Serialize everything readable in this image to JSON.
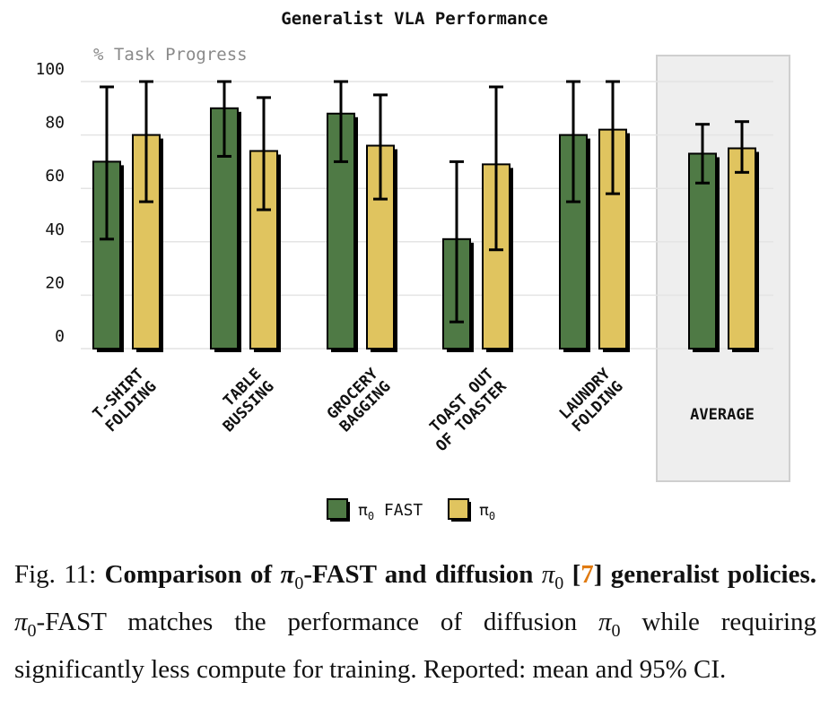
{
  "chart_data": {
    "type": "bar",
    "title": "Generalist VLA Performance",
    "ylabel": "% Task Progress",
    "xlabel": "",
    "ylim": [
      0,
      100
    ],
    "yticks": [
      "0",
      "20",
      "40",
      "60",
      "80",
      "100"
    ],
    "categories": [
      {
        "lines": [
          "T-SHIRT",
          "FOLDING"
        ]
      },
      {
        "lines": [
          "TABLE",
          "BUSSING"
        ]
      },
      {
        "lines": [
          "GROCERY",
          "BAGGING"
        ]
      },
      {
        "lines": [
          "TOAST OUT",
          "OF TOASTER"
        ]
      },
      {
        "lines": [
          "LAUNDRY",
          "FOLDING"
        ]
      },
      {
        "lines": [
          "AVERAGE"
        ]
      }
    ],
    "series": [
      {
        "name": "π₀ FAST",
        "legend_main": "π",
        "legend_sub": "0",
        "legend_suffix": " FAST",
        "color": "#4f7a45",
        "values": [
          70,
          90,
          88,
          41,
          80,
          73
        ],
        "ci_low": [
          41,
          72,
          70,
          10,
          55,
          62
        ],
        "ci_high": [
          98,
          100,
          100,
          70,
          100,
          84
        ]
      },
      {
        "name": "π₀",
        "legend_main": "π",
        "legend_sub": "0",
        "legend_suffix": "",
        "color": "#e0c45f",
        "values": [
          80,
          74,
          76,
          69,
          82,
          75
        ],
        "ci_low": [
          55,
          52,
          56,
          37,
          58,
          66
        ],
        "ci_high": [
          100,
          94,
          95,
          98,
          100,
          85
        ]
      }
    ],
    "highlight_category": "AVERAGE",
    "legend": "bottom-center"
  },
  "caption": {
    "fig_label": "Fig. 11:",
    "bold_a": "Comparison of ",
    "pi": "π",
    "sub0": "0",
    "bold_b": "-FAST and diffusion ",
    "ref": "7",
    "bold_c": " generalist policies.",
    "text_a": "-FAST matches the performance of diffusion ",
    "text_b": " while requiring significantly less compute for training. Reported: mean and 95% CI."
  }
}
